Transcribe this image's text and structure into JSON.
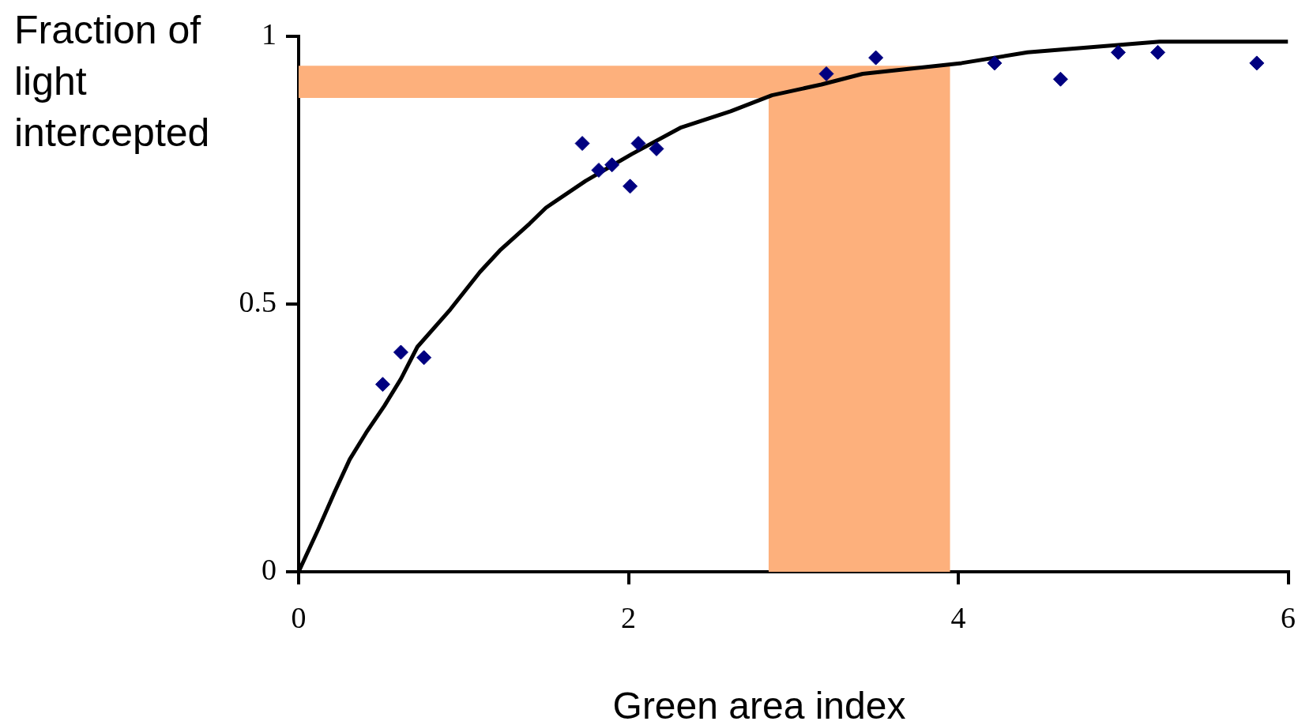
{
  "chart_data": {
    "type": "scatter",
    "xlabel": "Green area index",
    "ylabel": "Fraction of light intercepted",
    "xlim": [
      0,
      6
    ],
    "ylim": [
      0,
      1
    ],
    "xticks": [
      0,
      2,
      4,
      6
    ],
    "yticks": [
      0,
      0.5,
      1
    ],
    "grid": false,
    "legend": false,
    "series": [
      {
        "color": "#000080",
        "marker": "diamond",
        "x": [
          0.51,
          0.62,
          0.76,
          1.72,
          1.82,
          1.9,
          2.01,
          2.06,
          2.17,
          3.2,
          3.5,
          4.22,
          4.62,
          4.97,
          5.21,
          5.81
        ],
        "values": [
          0.35,
          0.41,
          0.4,
          0.8,
          0.75,
          0.76,
          0.72,
          0.8,
          0.79,
          0.93,
          0.96,
          0.95,
          0.92,
          0.97,
          0.97,
          0.95
        ]
      },
      {
        "type": "line",
        "color": "#000000",
        "marker": "none",
        "x": [
          0,
          0.12,
          0.22,
          0.31,
          0.41,
          0.52,
          0.62,
          0.72,
          0.92,
          1.1,
          1.22,
          1.4,
          1.5,
          1.74,
          2.02,
          2.32,
          2.62,
          2.87,
          3.17,
          3.42,
          3.72,
          4.02,
          4.42,
          4.82,
          5.22,
          5.62,
          6
        ],
        "values": [
          0,
          0.08,
          0.15,
          0.21,
          0.26,
          0.31,
          0.36,
          0.42,
          0.49,
          0.56,
          0.6,
          0.65,
          0.68,
          0.73,
          0.78,
          0.83,
          0.86,
          0.89,
          0.91,
          0.93,
          0.94,
          0.95,
          0.97,
          0.98,
          0.99,
          0.99,
          0.99
        ]
      }
    ],
    "bands": [
      {
        "axis": "y",
        "from": 0.885,
        "to": 0.945,
        "color": "#fdb07c"
      },
      {
        "axis": "x",
        "from": 2.85,
        "to": 3.95,
        "color": "#fdb07c"
      }
    ]
  }
}
